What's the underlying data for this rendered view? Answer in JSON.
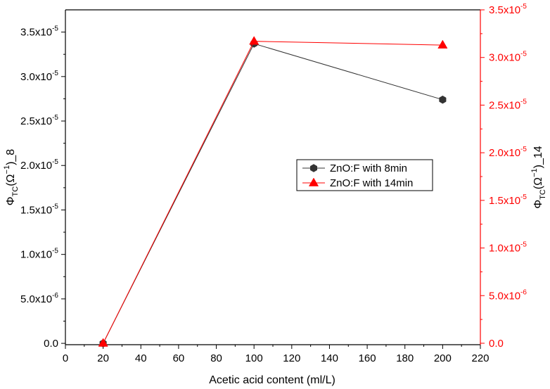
{
  "chart_data": {
    "type": "line",
    "xlabel": "Acetic acid content (ml/L)",
    "xlim": [
      0,
      220
    ],
    "x_ticks": [
      0,
      20,
      40,
      60,
      80,
      100,
      120,
      140,
      160,
      180,
      200,
      220
    ],
    "x_tick_labels": [
      "0",
      "20",
      "40",
      "60",
      "80",
      "100",
      "120",
      "140",
      "160",
      "180",
      "200",
      "220"
    ],
    "left_axis": {
      "label_main": "Φ",
      "label_sub": "TC",
      "label_rest": "(Ω",
      "label_sup": "−1",
      "label_tail": ")_8",
      "ylim": [
        -1.5e-07,
        3.75e-05
      ],
      "ticks": [
        0,
        5e-06,
        1e-05,
        1.5e-05,
        2e-05,
        2.5e-05,
        3e-05,
        3.5e-05
      ],
      "tick_mantissa": [
        "0.0",
        "5.0x10",
        "1.0x10",
        "1.5x10",
        "2.0x10",
        "2.5x10",
        "3.0x10",
        "3.5x10"
      ],
      "tick_exponent": [
        "",
        "-6",
        "-5",
        "-5",
        "-5",
        "-5",
        "-5",
        "-5"
      ],
      "color": "#000000"
    },
    "right_axis": {
      "label_main": "Φ",
      "label_sub": "TC",
      "label_rest": "(Ω",
      "label_sup": "−1",
      "label_tail": ")_14",
      "ylim": [
        -1.5e-07,
        3.5e-05
      ],
      "ticks": [
        0,
        5e-06,
        1e-05,
        1.5e-05,
        2e-05,
        2.5e-05,
        3e-05,
        3.5e-05
      ],
      "tick_mantissa": [
        "0.0",
        "5.0x10",
        "1.0x10",
        "1.5x10",
        "2.0x10",
        "2.5x10",
        "3.0x10",
        "3.5x10"
      ],
      "tick_exponent": [
        "",
        "-6",
        "-5",
        "-5",
        "-5",
        "-5",
        "-5",
        "-5"
      ],
      "color": "#ff0000"
    },
    "series": [
      {
        "name": "ZnO:F with 8min",
        "axis": "left",
        "marker": "hexagon",
        "color": "#333333",
        "x": [
          20,
          100,
          200
        ],
        "y": [
          0,
          3.37e-05,
          2.74e-05
        ]
      },
      {
        "name": "ZnO:F with 14min",
        "axis": "right",
        "marker": "triangle",
        "color": "#ff0000",
        "x": [
          20,
          100,
          200
        ],
        "y": [
          0,
          3.17e-05,
          3.13e-05
        ]
      }
    ],
    "legend": "center-right",
    "grid": false
  }
}
